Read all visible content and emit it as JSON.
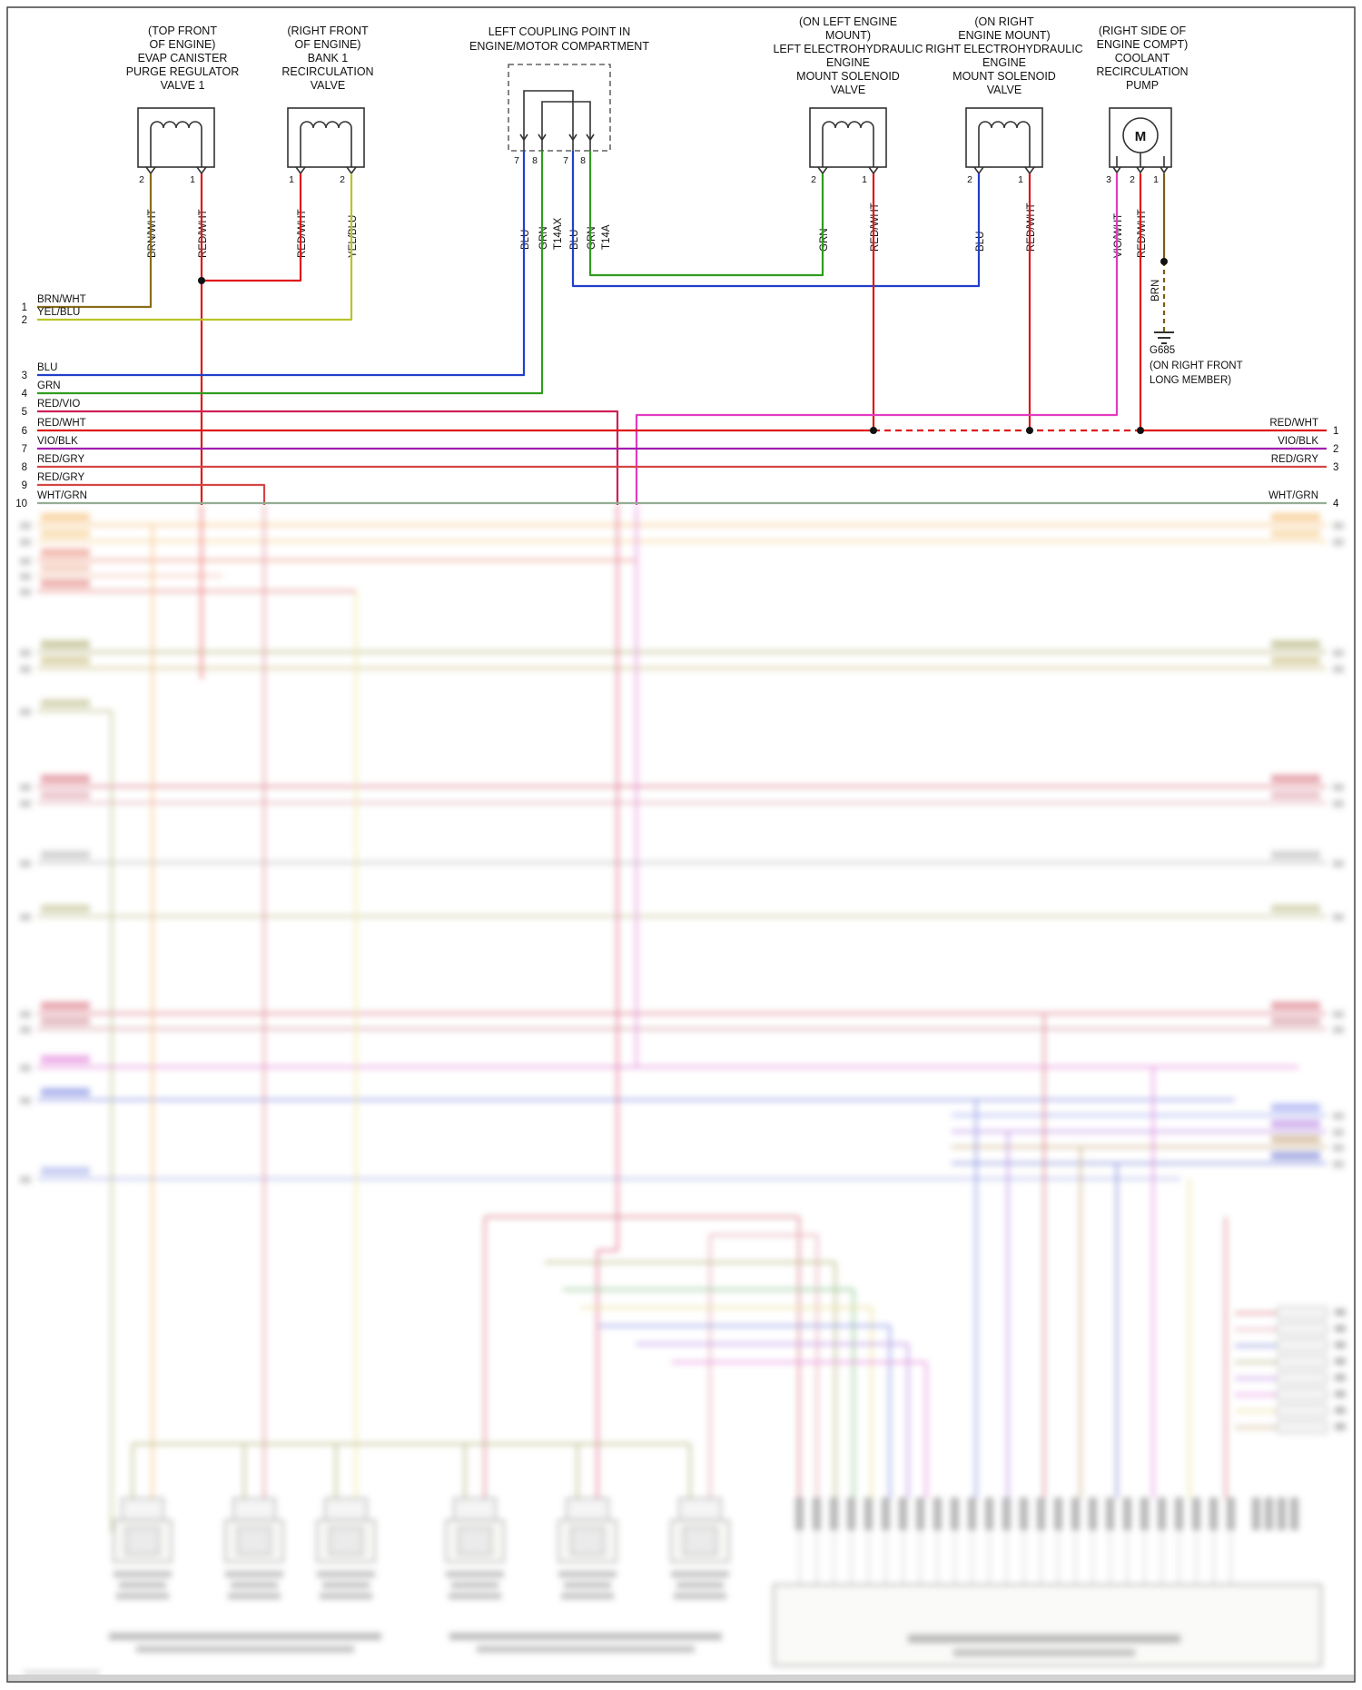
{
  "components": [
    {
      "label": [
        "(TOP FRONT",
        "OF ENGINE)",
        "EVAP CANISTER",
        "PURGE REGULATOR",
        "VALVE 1"
      ],
      "pins": [
        "2",
        "1"
      ],
      "wires": [
        "BRN/WHT",
        "RED/WHT"
      ]
    },
    {
      "label": [
        "(RIGHT FRONT",
        "OF ENGINE)",
        "BANK 1",
        "RECIRCULATION",
        "VALVE"
      ],
      "pins": [
        "1",
        "2"
      ],
      "wires": [
        "RED/WHT",
        "YEL/BLU"
      ]
    },
    {
      "label": [
        "LEFT COUPLING POINT IN",
        "ENGINE/MOTOR COMPARTMENT"
      ],
      "pins": [
        "7",
        "8",
        "7",
        "8"
      ],
      "wires": [
        "BLU",
        "GRN",
        "BLU",
        "GRN"
      ],
      "connectors": [
        "T14AX",
        "T14A"
      ]
    },
    {
      "label": [
        "(ON LEFT ENGINE",
        "MOUNT)",
        "LEFT ELECTROHYDRAULIC",
        "ENGINE",
        "MOUNT SOLENOID",
        "VALVE"
      ],
      "pins": [
        "2",
        "1"
      ],
      "wires": [
        "GRN",
        "RED/WHT"
      ]
    },
    {
      "label": [
        "(ON RIGHT",
        "ENGINE MOUNT)",
        "RIGHT ELECTROHYDRAULIC",
        "ENGINE",
        "MOUNT SOLENOID",
        "VALVE"
      ],
      "pins": [
        "2",
        "1"
      ],
      "wires": [
        "BLU",
        "RED/WHT"
      ]
    },
    {
      "label": [
        "(RIGHT SIDE OF",
        "ENGINE COMPT)",
        "COOLANT",
        "RECIRCULATION",
        "PUMP"
      ],
      "pins": [
        "3",
        "2",
        "1"
      ],
      "wires": [
        "VIO/WHT",
        "RED/WHT",
        "BRN"
      ]
    }
  ],
  "ground": {
    "name": "G685",
    "location": [
      "(ON RIGHT FRONT",
      "LONG MEMBER)"
    ],
    "wire": "BRN"
  },
  "left_rows": [
    {
      "num": "1",
      "label": "BRN/WHT"
    },
    {
      "num": "2",
      "label": "YEL/BLU"
    },
    {
      "num": "3",
      "label": "BLU"
    },
    {
      "num": "4",
      "label": "GRN"
    },
    {
      "num": "5",
      "label": "RED/VIO"
    },
    {
      "num": "6",
      "label": "RED/WHT"
    },
    {
      "num": "7",
      "label": "VIO/BLK"
    },
    {
      "num": "8",
      "label": "RED/GRY"
    },
    {
      "num": "9",
      "label": "RED/GRY"
    },
    {
      "num": "10",
      "label": "WHT/GRN"
    }
  ],
  "right_rows": [
    {
      "label": "RED/WHT",
      "num": "1"
    },
    {
      "label": "VIO/BLK",
      "num": "2"
    },
    {
      "label": "RED/GRY",
      "num": "3"
    },
    {
      "label": "WHT/GRN",
      "num": "4"
    }
  ],
  "colors": {
    "brn_wht": "#8a6d1a",
    "red_wht": "#e01818",
    "yel_blu": "#b8c427",
    "blu": "#2140cc",
    "grn": "#2f9e1e",
    "red_vio": "#d02058",
    "vio_blk": "#a21cae",
    "red_gry": "#d64545",
    "wht_grn": "#94ad94",
    "vio_wht": "#e23bc0",
    "brn": "#7a5c10"
  }
}
